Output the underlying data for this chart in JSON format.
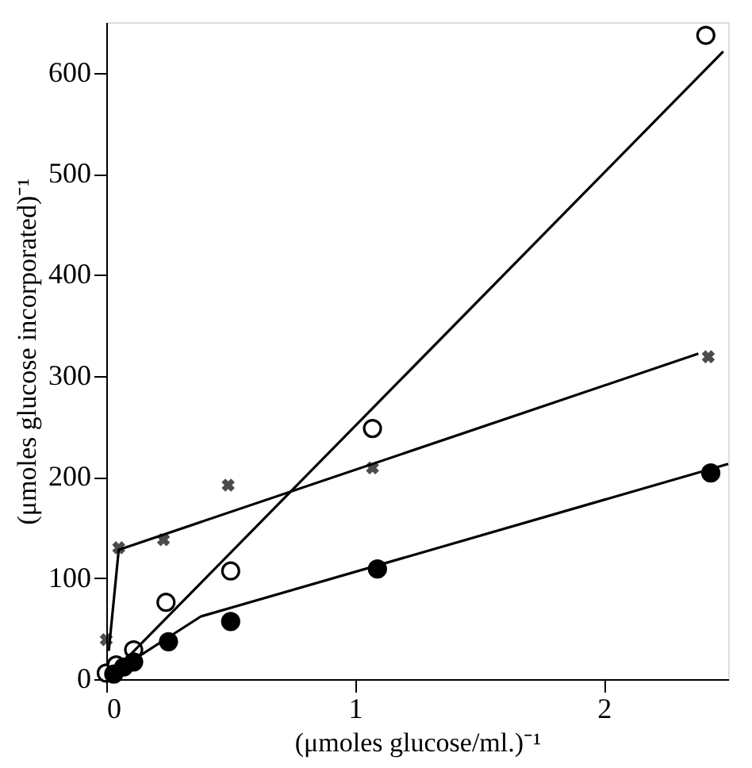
{
  "chart_data": {
    "type": "scatter",
    "xlabel": "(μmoles glucose/ml.)⁻¹",
    "ylabel": "(μmoles glucose incorporated)⁻¹",
    "xlim": [
      0,
      2.5
    ],
    "ylim": [
      0,
      650
    ],
    "xticks": [
      0,
      1,
      2
    ],
    "yticks": [
      0,
      100,
      200,
      300,
      400,
      500,
      600
    ],
    "grid": false,
    "series": [
      {
        "marker": "circle",
        "color": "#ffffff",
        "x": [
          0.0,
          0.04,
          0.11,
          0.24,
          0.5,
          1.07,
          2.41
        ],
        "values": [
          6,
          14,
          29,
          76,
          107,
          248,
          637
        ]
      },
      {
        "marker": "circle",
        "color": "#000000",
        "x": [
          0.03,
          0.07,
          0.11,
          0.25,
          0.5,
          1.09,
          2.43
        ],
        "values": [
          5,
          12,
          17,
          37,
          57,
          109,
          204
        ]
      },
      {
        "marker": "cross",
        "color": "#000000",
        "x": [
          0.0,
          0.05,
          0.23,
          0.49,
          1.07,
          2.42
        ],
        "values": [
          39,
          130,
          138,
          192,
          209,
          319
        ]
      },
      {
        "type": "line",
        "marker": "none",
        "color": "#000000",
        "x": [
          0.02,
          2.48
        ],
        "values": [
          5,
          621
        ]
      },
      {
        "type": "line",
        "marker": "none",
        "color": "#000000",
        "x": [
          0.02,
          0.38,
          2.5
        ],
        "values": [
          5,
          62,
          213
        ]
      },
      {
        "type": "line",
        "marker": "none",
        "color": "#000000",
        "x": [
          0.01,
          0.05,
          2.38
        ],
        "values": [
          28,
          128,
          322
        ]
      }
    ]
  }
}
